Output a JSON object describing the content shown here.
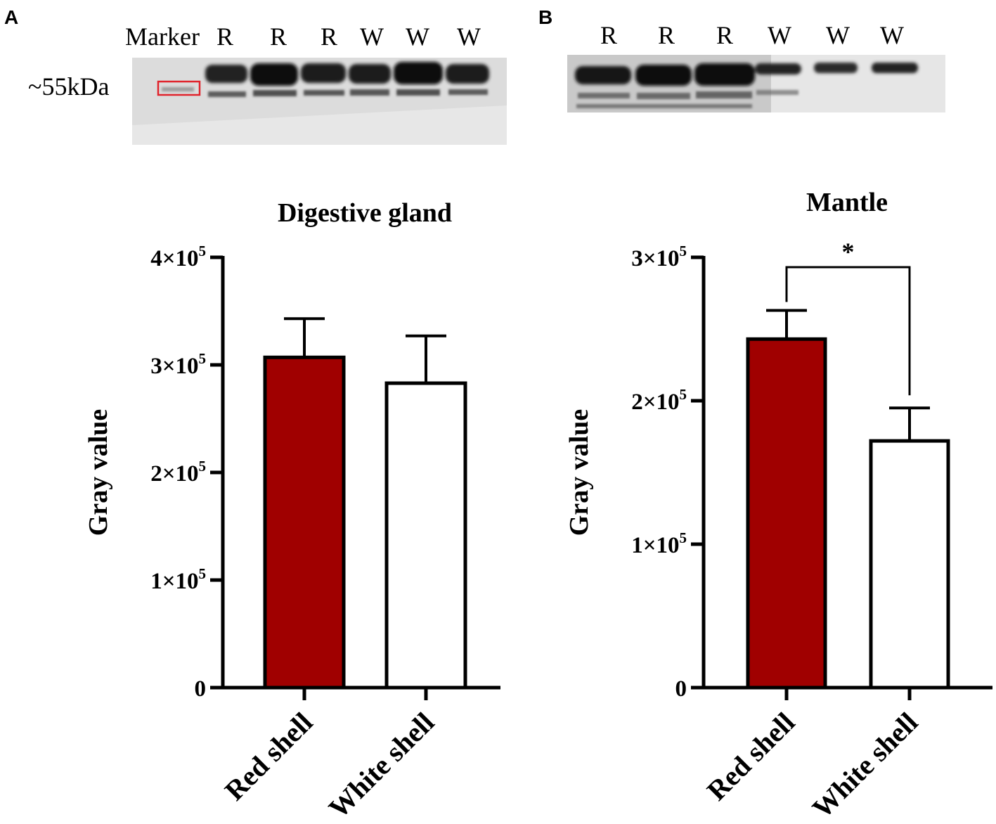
{
  "panels": {
    "a": {
      "letter": "A",
      "blot": {
        "marker_label": "Marker",
        "size_label": "~55kDa",
        "lanes": [
          "R",
          "R",
          "R",
          "W",
          "W",
          "W"
        ]
      }
    },
    "b": {
      "letter": "B",
      "blot": {
        "lanes": [
          "R",
          "R",
          "R",
          "W",
          "W",
          "W"
        ]
      }
    }
  },
  "colors": {
    "red_shell": "#a00000",
    "white_shell": "#ffffff",
    "axis": "#000000",
    "marker_box": "#e0242c"
  },
  "chart_data": [
    {
      "type": "bar",
      "title": "Digestive gland",
      "xlabel": "",
      "ylabel": "Gray value",
      "categories": [
        "Red shell",
        "White shell"
      ],
      "values": [
        307000,
        283000
      ],
      "errors": [
        36000,
        44000
      ],
      "ylim": [
        0,
        400000
      ],
      "ytick_labels": [
        {
          "value": 0,
          "base": "0",
          "exp": ""
        },
        {
          "value": 100000,
          "base": "1×10",
          "exp": "5"
        },
        {
          "value": 200000,
          "base": "2×10",
          "exp": "5"
        },
        {
          "value": 300000,
          "base": "3×10",
          "exp": "5"
        },
        {
          "value": 400000,
          "base": "4×10",
          "exp": "5"
        }
      ],
      "significance": null
    },
    {
      "type": "bar",
      "title": "Mantle",
      "xlabel": "",
      "ylabel": "Gray value",
      "categories": [
        "Red shell",
        "White shell"
      ],
      "values": [
        243000,
        172000
      ],
      "errors": [
        20000,
        23000
      ],
      "ylim": [
        0,
        300000
      ],
      "ytick_labels": [
        {
          "value": 0,
          "base": "0",
          "exp": ""
        },
        {
          "value": 100000,
          "base": "1×10",
          "exp": "5"
        },
        {
          "value": 200000,
          "base": "2×10",
          "exp": "5"
        },
        {
          "value": 300000,
          "base": "3×10",
          "exp": "5"
        }
      ],
      "significance": {
        "label": "*",
        "between": [
          "Red shell",
          "White shell"
        ]
      }
    }
  ]
}
